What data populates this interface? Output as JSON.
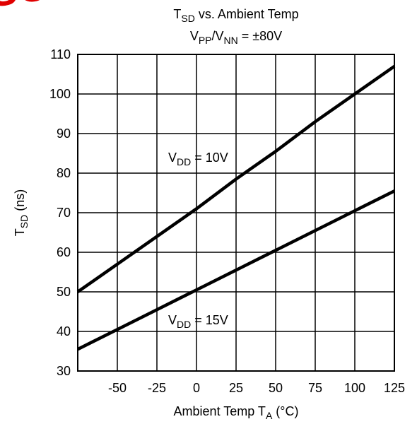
{
  "chart_data": {
    "type": "line",
    "watermark": "OBSOLETE",
    "title": [
      "T",
      "SD",
      " vs. Ambient Temp"
    ],
    "subtitle": [
      "V",
      "PP",
      "/V",
      "NN",
      " = ±80V"
    ],
    "x_label": [
      "Ambient Temp T",
      "A",
      " (°C)"
    ],
    "y_label": [
      "T",
      "SD",
      " (ns)"
    ],
    "x": [
      -75,
      -50,
      -25,
      0,
      25,
      50,
      75,
      100,
      125
    ],
    "series": [
      {
        "label": [
          "V",
          "DD",
          " = 10V"
        ],
        "color": "#000000",
        "values": [
          50,
          57,
          64,
          71,
          78.5,
          85.5,
          93,
          100,
          107
        ]
      },
      {
        "label": [
          "V",
          "DD",
          " = 15V"
        ],
        "color": "#000000",
        "values": [
          35.5,
          40.5,
          45.5,
          50.5,
          55.5,
          60.5,
          65.5,
          70.5,
          75.5
        ]
      }
    ],
    "xlim": [
      -75,
      125
    ],
    "xticks": [
      -50,
      -25,
      0,
      25,
      50,
      75,
      100,
      125
    ],
    "ylim": [
      30,
      110
    ],
    "yticks": [
      30,
      40,
      50,
      60,
      70,
      80,
      90,
      100,
      110
    ],
    "grid": true
  }
}
